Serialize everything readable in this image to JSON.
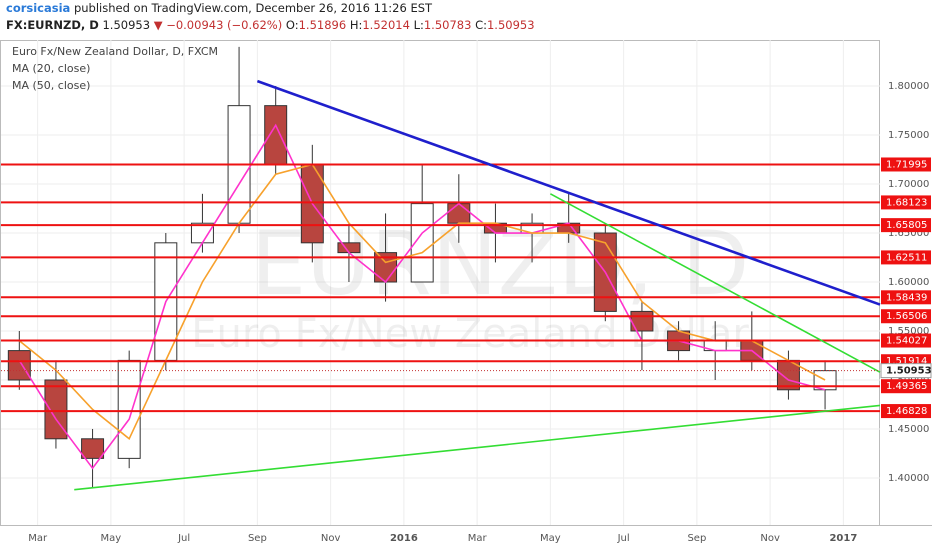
{
  "header": {
    "user": "corsicasia",
    "published": "published on TradingView.com, December 26, 2016 11:26 EST",
    "symbol": "FX:EURNZD, D",
    "last": "1.50953",
    "change": "−0.00943 (−0.62%)",
    "open_label": "O:",
    "open": "1.51896",
    "high_label": "H:",
    "high": "1.52014",
    "low_label": "L:",
    "low": "1.50783",
    "close_label": "C:",
    "close": "1.50953"
  },
  "chart_data": {
    "type": "candlestick",
    "title": "Euro Fx/New Zealand Dollar, D, FXCM",
    "watermark": "EURNZD, D",
    "watermark_subtitle": "Euro Fx/New Zealand Dollar",
    "x": [
      "2015-02",
      "2015-03",
      "2015-04",
      "2015-05",
      "2015-06",
      "2015-07",
      "2015-08",
      "2015-09",
      "2015-10",
      "2015-11",
      "2015-12",
      "2016-01",
      "2016-02",
      "2016-03",
      "2016-04",
      "2016-05",
      "2016-06",
      "2016-07",
      "2016-08",
      "2016-09",
      "2016-10",
      "2016-11",
      "2016-12"
    ],
    "open": [
      1.53,
      1.5,
      1.44,
      1.42,
      1.52,
      1.64,
      1.66,
      1.78,
      1.72,
      1.64,
      1.63,
      1.6,
      1.68,
      1.66,
      1.65,
      1.66,
      1.65,
      1.57,
      1.55,
      1.53,
      1.54,
      1.52,
      1.49
    ],
    "high": [
      1.55,
      1.52,
      1.45,
      1.53,
      1.65,
      1.69,
      1.84,
      1.8,
      1.74,
      1.66,
      1.67,
      1.72,
      1.71,
      1.68,
      1.67,
      1.69,
      1.66,
      1.58,
      1.56,
      1.56,
      1.57,
      1.53,
      1.52
    ],
    "low": [
      1.49,
      1.43,
      1.39,
      1.41,
      1.51,
      1.63,
      1.65,
      1.71,
      1.62,
      1.6,
      1.58,
      1.6,
      1.64,
      1.62,
      1.62,
      1.64,
      1.56,
      1.51,
      1.52,
      1.5,
      1.51,
      1.48,
      1.47
    ],
    "close": [
      1.5,
      1.44,
      1.42,
      1.52,
      1.64,
      1.66,
      1.78,
      1.72,
      1.64,
      1.63,
      1.6,
      1.68,
      1.66,
      1.65,
      1.66,
      1.65,
      1.57,
      1.55,
      1.53,
      1.54,
      1.52,
      1.49,
      1.50953
    ],
    "up_color": "#ffffff",
    "down_color": "#b8453f",
    "series": [
      {
        "name": "MA (20, close)",
        "color": "#ff33cc",
        "values": [
          1.52,
          1.46,
          1.41,
          1.46,
          1.58,
          1.64,
          1.7,
          1.76,
          1.68,
          1.63,
          1.6,
          1.65,
          1.68,
          1.65,
          1.65,
          1.66,
          1.61,
          1.54,
          1.54,
          1.53,
          1.53,
          1.5,
          1.49
        ]
      },
      {
        "name": "MA (50, close)",
        "color": "#f7a12c",
        "values": [
          1.54,
          1.51,
          1.47,
          1.44,
          1.52,
          1.6,
          1.66,
          1.71,
          1.72,
          1.66,
          1.62,
          1.63,
          1.66,
          1.66,
          1.65,
          1.65,
          1.64,
          1.58,
          1.55,
          1.54,
          1.54,
          1.52,
          1.5
        ]
      }
    ],
    "trend_lines": [
      {
        "color": "#1f1fcc",
        "points": [
          [
            "2015-09",
            1.805
          ],
          [
            "2017-02",
            1.577
          ]
        ]
      },
      {
        "color": "#33dd33",
        "points": [
          [
            "2016-05",
            1.69
          ],
          [
            "2017-02",
            1.508
          ]
        ]
      },
      {
        "color": "#33dd33",
        "points": [
          [
            "2015-04",
            1.388
          ],
          [
            "2017-02",
            1.474
          ]
        ]
      }
    ],
    "levels": [
      1.71995,
      1.68123,
      1.65805,
      1.62511,
      1.58439,
      1.56506,
      1.54027,
      1.51914,
      1.49365,
      1.46828
    ],
    "level_color": "#ee1111",
    "last_price": 1.50953,
    "xlim": [
      "2015-02",
      "2017-02"
    ],
    "xticks": [
      {
        "value": "2015-03",
        "label": "Mar"
      },
      {
        "value": "2015-05",
        "label": "May"
      },
      {
        "value": "2015-07",
        "label": "Jul"
      },
      {
        "value": "2015-09",
        "label": "Sep"
      },
      {
        "value": "2015-11",
        "label": "Nov"
      },
      {
        "value": "2016-01",
        "label": "2016"
      },
      {
        "value": "2016-03",
        "label": "Mar"
      },
      {
        "value": "2016-05",
        "label": "May"
      },
      {
        "value": "2016-07",
        "label": "Jul"
      },
      {
        "value": "2016-09",
        "label": "Sep"
      },
      {
        "value": "2016-11",
        "label": "Nov"
      },
      {
        "value": "2017-01",
        "label": "2017"
      }
    ],
    "ylim": [
      1.352,
      1.847
    ],
    "yticks": [
      {
        "value": 1.4,
        "label": "1.40000"
      },
      {
        "value": 1.45,
        "label": "1.45000"
      },
      {
        "value": 1.5,
        "label": "1.50000"
      },
      {
        "value": 1.55,
        "label": "1.55000"
      },
      {
        "value": 1.6,
        "label": "1.60000"
      },
      {
        "value": 1.65,
        "label": "1.65000"
      },
      {
        "value": 1.7,
        "label": "1.70000"
      },
      {
        "value": 1.75,
        "label": "1.75000"
      },
      {
        "value": 1.8,
        "label": "1.80000"
      }
    ],
    "grid": true
  }
}
